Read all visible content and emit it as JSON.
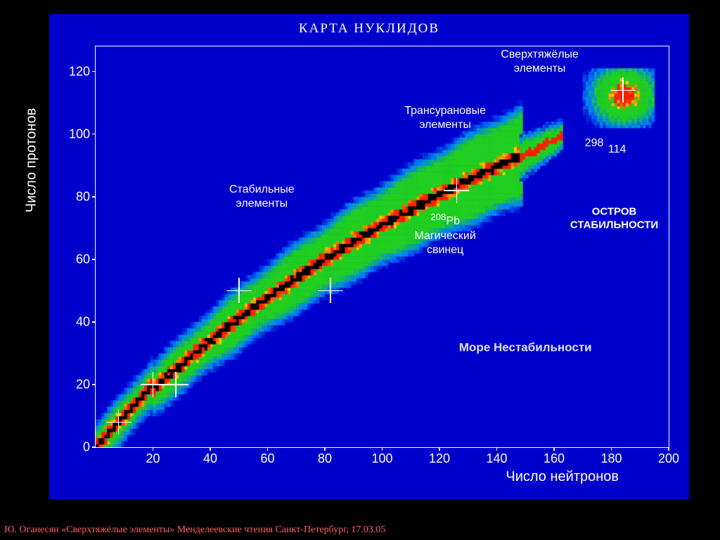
{
  "chart": {
    "type": "heatmap",
    "title": "КАРТА НУКЛИДОВ",
    "title_fontsize": 19,
    "xlabel": "Число нейтронов",
    "ylabel": "Число протонов",
    "label_fontsize": 20,
    "tick_fontsize": 18,
    "xlim": [
      0,
      200
    ],
    "ylim": [
      0,
      128
    ],
    "xticks": [
      20,
      40,
      60,
      80,
      100,
      120,
      140,
      160,
      180,
      200
    ],
    "yticks": [
      0,
      20,
      40,
      60,
      80,
      100,
      120
    ],
    "background_color": "#0000cc",
    "border_color": "#ffffff",
    "text_color": "#ffffff",
    "colorscale": [
      "#0000cc",
      "#0080ff",
      "#00ff00",
      "#80ff00",
      "#ffff00",
      "#ff8000",
      "#ff0000",
      "#000000"
    ],
    "main_band": {
      "start_n": 0,
      "start_z": 0,
      "end_n": 145,
      "end_z": 95,
      "core_color": "#000000",
      "inner_color": "#ff2000",
      "mid_color": "#ffd000",
      "outer_color": "#20d020",
      "halo_color": "#0080ff",
      "width_outer": 16
    },
    "island": {
      "center_n": 184,
      "center_z": 112,
      "radius": 12,
      "core_color": "#ff2000",
      "outer_color": "#20d020"
    },
    "crosshairs": [
      {
        "n": 8,
        "z": 8
      },
      {
        "n": 20,
        "z": 20
      },
      {
        "n": 28,
        "z": 20
      },
      {
        "n": 50,
        "z": 50
      },
      {
        "n": 82,
        "z": 50
      },
      {
        "n": 126,
        "z": 82
      },
      {
        "n": 184,
        "z": 114
      }
    ],
    "annotations": [
      {
        "n": 155,
        "z": 123,
        "text_lines": [
          "Сверхтяжёлые",
          "элементы"
        ],
        "fontsize": 16,
        "weight": "normal"
      },
      {
        "n": 122,
        "z": 105,
        "text_lines": [
          "Трансурановые",
          "элементы"
        ],
        "fontsize": 16,
        "weight": "normal"
      },
      {
        "n": 58,
        "z": 80,
        "text_lines": [
          "Стабильные",
          "элементы"
        ],
        "fontsize": 16,
        "weight": "normal"
      },
      {
        "n": 122,
        "z": 68,
        "text_lines": [
          "<sup>208</sup>Pb",
          "Магический",
          "свинец"
        ],
        "fontsize": 16,
        "weight": "normal",
        "html": true
      },
      {
        "n": 181,
        "z": 73,
        "text_lines": [
          "ОСТРОВ",
          "СТАБИЛЬНОСТИ"
        ],
        "fontsize": 15,
        "weight": "bold"
      },
      {
        "n": 150,
        "z": 32,
        "text_lines": [
          "Море Нестабильности"
        ],
        "fontsize": 17,
        "weight": "bold",
        "color": "#e0e0ff"
      },
      {
        "n": 174,
        "z": 97,
        "text_lines": [
          "298"
        ],
        "fontsize": 16,
        "weight": "normal"
      },
      {
        "n": 182,
        "z": 95,
        "text_lines": [
          "114"
        ],
        "fontsize": 16,
        "weight": "normal"
      }
    ]
  },
  "footer": {
    "text": "Ю. Оганесян  «Сверхтяжёлые элементы» Менделеевские чтения Санкт-Петербург, 17.03.05",
    "color": "#ff6060",
    "fontsize": 14
  }
}
